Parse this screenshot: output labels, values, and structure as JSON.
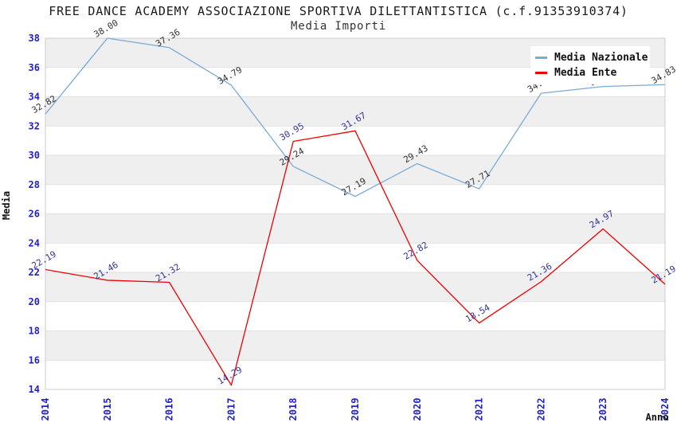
{
  "header": {
    "title": "FREE DANCE ACADEMY ASSOCIAZIONE SPORTIVA DILETTANTISTICA (c.f.91353910374)",
    "subtitle": "Media Importi"
  },
  "legend": {
    "position": "top-right",
    "items": [
      {
        "label": "Media Nazionale",
        "color": "#79aad9"
      },
      {
        "label": "Media Ente",
        "color": "#f00000"
      }
    ]
  },
  "axis": {
    "ylabel": "Media",
    "xlabel": "Anno",
    "yticks": [
      38,
      36,
      34,
      32,
      30,
      28,
      26,
      24,
      22,
      20,
      18,
      16,
      14
    ],
    "tick_label_color": "#2222cc",
    "axis_title_color": "#111111"
  },
  "chart_data": {
    "type": "line",
    "title": "FREE DANCE ACADEMY ASSOCIAZIONE SPORTIVA DILETTANTISTICA (c.f.91353910374)",
    "subtitle": "Media Importi",
    "xlabel": "Anno",
    "ylabel": "Media",
    "x": [
      2014,
      2015,
      2016,
      2017,
      2018,
      2019,
      2020,
      2021,
      2022,
      2023,
      2024
    ],
    "ylim": [
      14,
      38
    ],
    "grid": "horizontal-bands-alternating",
    "band_color": "#efefef",
    "grid_color": "#e2e2e2",
    "border_color": "#cccccc",
    "legend_position": "top-right",
    "series": [
      {
        "name": "Media Nazionale",
        "color": "#79aad9",
        "label_color": "#333333",
        "values": [
          32.82,
          38.0,
          37.36,
          34.79,
          29.24,
          27.19,
          29.43,
          27.71,
          34.24,
          34.7,
          34.83
        ],
        "point_labels": [
          "32.82",
          "38.00",
          "37.36",
          "34.79",
          "29.24",
          "27.19",
          "29.43",
          "27.71",
          "34.24",
          "34.70",
          "34.83"
        ]
      },
      {
        "name": "Media Ente",
        "color": "#f00000",
        "label_color": "#333399",
        "values": [
          22.19,
          21.46,
          21.32,
          14.29,
          30.95,
          31.67,
          22.82,
          18.54,
          21.36,
          24.97,
          21.19
        ],
        "point_labels": [
          "22.19",
          "21.46",
          "21.32",
          "14.29",
          "30.95",
          "31.67",
          "22.82",
          "18.54",
          "21.36",
          "24.97",
          "21.19"
        ]
      }
    ]
  }
}
